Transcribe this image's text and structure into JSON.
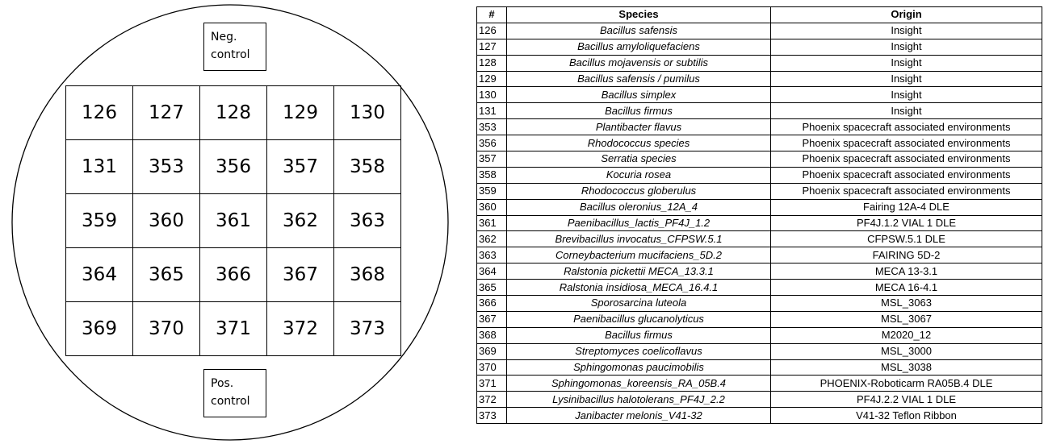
{
  "plate": {
    "neg_control": "Neg. control",
    "pos_control": "Pos. control",
    "wells": [
      [
        126,
        127,
        128,
        129,
        130
      ],
      [
        131,
        353,
        356,
        357,
        358
      ],
      [
        359,
        360,
        361,
        362,
        363
      ],
      [
        364,
        365,
        366,
        367,
        368
      ],
      [
        369,
        370,
        371,
        372,
        373
      ]
    ]
  },
  "table": {
    "header": [
      "#",
      "Species",
      "Origin"
    ],
    "rows": [
      [
        126,
        "Bacillus safensis",
        "Insight"
      ],
      [
        127,
        "Bacillus amyloliquefaciens",
        "Insight"
      ],
      [
        128,
        "Bacillus mojavensis or subtilis",
        "Insight"
      ],
      [
        129,
        "Bacillus safensis / pumilus",
        "Insight"
      ],
      [
        130,
        "Bacillus simplex",
        "Insight"
      ],
      [
        131,
        "Bacillus firmus",
        "Insight"
      ],
      [
        353,
        "Plantibacter flavus",
        "Phoenix spacecraft associated environments"
      ],
      [
        356,
        "Rhodococcus species",
        "Phoenix spacecraft associated environments"
      ],
      [
        357,
        "Serratia species",
        "Phoenix spacecraft associated environments"
      ],
      [
        358,
        "Kocuria rosea",
        "Phoenix spacecraft associated environments"
      ],
      [
        359,
        "Rhodococcus globerulus",
        "Phoenix spacecraft associated environments"
      ],
      [
        360,
        "Bacillus oleronius_12A_4",
        "Fairing 12A-4 DLE"
      ],
      [
        361,
        "Paenibacillus_lactis_PF4J_1.2",
        "PF4J.1.2 VIAL 1 DLE"
      ],
      [
        362,
        "Brevibacillus invocatus_CFPSW.5.1",
        "CFPSW.5.1 DLE"
      ],
      [
        363,
        "Corneybacterium mucifaciens_5D.2",
        "FAIRING 5D-2"
      ],
      [
        364,
        "Ralstonia pickettii MECA_13.3.1",
        "MECA 13-3.1"
      ],
      [
        365,
        "Ralstonia insidiosa_MECA_16.4.1",
        "MECA 16-4.1"
      ],
      [
        366,
        "Sporosarcina luteola",
        "MSL_3063"
      ],
      [
        367,
        "Paenibacillus glucanolyticus",
        "MSL_3067"
      ],
      [
        368,
        "Bacillus firmus",
        "M2020_12"
      ],
      [
        369,
        "Streptomyces coelicoflavus",
        "MSL_3000"
      ],
      [
        370,
        "Sphingomonas paucimobilis",
        "MSL_3038"
      ],
      [
        371,
        "Sphingomonas_koreensis_RA_05B.4",
        "PHOENIX-Roboticarm RA05B.4 DLE"
      ],
      [
        372,
        "Lysinibacillus halotolerans_PF4J_2.2",
        "PF4J.2.2 VIAL 1 DLE"
      ],
      [
        373,
        "Janibacter melonis_V41-32",
        "V41-32 Teflon Ribbon"
      ]
    ]
  }
}
